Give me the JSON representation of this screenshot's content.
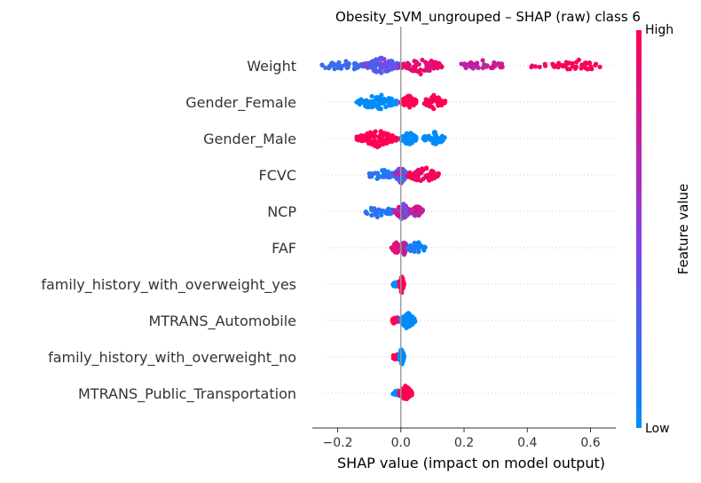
{
  "chart_data": {
    "type": "scatter",
    "subtype": "shap-beeswarm",
    "title": "Obesity_SVM_ungrouped – SHAP (raw) class 6",
    "xlabel": "SHAP value (impact on model output)",
    "ylabel": "",
    "xlim": [
      -0.28,
      0.68
    ],
    "xticks": [
      -0.2,
      0.0,
      0.2,
      0.4,
      0.6
    ],
    "xtick_labels": [
      "−0.2",
      "0.0",
      "0.2",
      "0.4",
      "0.6"
    ],
    "grid": false,
    "colorbar": {
      "label": "Feature value",
      "high_label": "High",
      "low_label": "Low",
      "low_color": "#008bfb",
      "high_color": "#ff0052"
    },
    "features": [
      {
        "name": "Weight",
        "clusters": [
          {
            "range": [
              -0.25,
              -0.12
            ],
            "n": 40,
            "value": 0.2,
            "spread": 0.05
          },
          {
            "range": [
              -0.12,
              0.0
            ],
            "n": 110,
            "value": 0.35,
            "spread": 0.15
          },
          {
            "range": [
              0.0,
              0.13
            ],
            "n": 60,
            "value": 0.88,
            "spread": 0.08
          },
          {
            "range": [
              0.19,
              0.33
            ],
            "n": 35,
            "value": 0.75,
            "spread": 0.1
          },
          {
            "range": [
              0.41,
              0.46
            ],
            "n": 6,
            "value": 0.96,
            "spread": 0.02
          },
          {
            "range": [
              0.48,
              0.64
            ],
            "n": 40,
            "value": 0.97,
            "spread": 0.02
          }
        ]
      },
      {
        "name": "Gender_Female",
        "clusters": [
          {
            "range": [
              -0.14,
              -0.01
            ],
            "n": 90,
            "value": 0.0,
            "spread": 0.0
          },
          {
            "range": [
              0.0,
              0.05
            ],
            "n": 45,
            "value": 1.0,
            "spread": 0.0
          },
          {
            "range": [
              0.07,
              0.14
            ],
            "n": 45,
            "value": 1.0,
            "spread": 0.0
          }
        ]
      },
      {
        "name": "Gender_Male",
        "clusters": [
          {
            "range": [
              -0.14,
              -0.01
            ],
            "n": 90,
            "value": 1.0,
            "spread": 0.0
          },
          {
            "range": [
              0.0,
              0.05
            ],
            "n": 45,
            "value": 0.0,
            "spread": 0.0
          },
          {
            "range": [
              0.07,
              0.14
            ],
            "n": 45,
            "value": 0.0,
            "spread": 0.0
          }
        ]
      },
      {
        "name": "FCVC",
        "clusters": [
          {
            "range": [
              -0.1,
              -0.02
            ],
            "n": 35,
            "value": 0.15,
            "spread": 0.1
          },
          {
            "range": [
              -0.02,
              0.02
            ],
            "n": 70,
            "value": 0.5,
            "spread": 0.4
          },
          {
            "range": [
              0.02,
              0.12
            ],
            "n": 60,
            "value": 0.95,
            "spread": 0.05
          }
        ]
      },
      {
        "name": "NCP",
        "clusters": [
          {
            "range": [
              -0.12,
              -0.02
            ],
            "n": 40,
            "value": 0.15,
            "spread": 0.1
          },
          {
            "range": [
              -0.02,
              0.03
            ],
            "n": 70,
            "value": 0.6,
            "spread": 0.35
          },
          {
            "range": [
              0.03,
              0.07
            ],
            "n": 35,
            "value": 0.75,
            "spread": 0.15
          }
        ]
      },
      {
        "name": "FAF",
        "clusters": [
          {
            "range": [
              -0.03,
              0.0
            ],
            "n": 35,
            "value": 0.9,
            "spread": 0.1
          },
          {
            "range": [
              0.0,
              0.02
            ],
            "n": 50,
            "value": 0.6,
            "spread": 0.3
          },
          {
            "range": [
              0.02,
              0.08
            ],
            "n": 40,
            "value": 0.08,
            "spread": 0.05
          }
        ]
      },
      {
        "name": "family_history_with_overweight_yes",
        "clusters": [
          {
            "range": [
              -0.025,
              -0.002
            ],
            "n": 18,
            "value": 0.0,
            "spread": 0.0
          },
          {
            "range": [
              -0.005,
              0.01
            ],
            "n": 60,
            "value": 1.0,
            "spread": 0.0
          }
        ]
      },
      {
        "name": "MTRANS_Automobile",
        "clusters": [
          {
            "range": [
              -0.028,
              -0.003
            ],
            "n": 22,
            "value": 1.0,
            "spread": 0.0
          },
          {
            "range": [
              -0.003,
              0.045
            ],
            "n": 60,
            "value": 0.0,
            "spread": 0.0
          }
        ]
      },
      {
        "name": "family_history_with_overweight_no",
        "clusters": [
          {
            "range": [
              -0.025,
              -0.002
            ],
            "n": 18,
            "value": 1.0,
            "spread": 0.0
          },
          {
            "range": [
              -0.005,
              0.01
            ],
            "n": 60,
            "value": 0.0,
            "spread": 0.0
          }
        ]
      },
      {
        "name": "MTRANS_Public_Transportation",
        "clusters": [
          {
            "range": [
              -0.025,
              -0.002
            ],
            "n": 18,
            "value": 0.0,
            "spread": 0.0
          },
          {
            "range": [
              -0.005,
              0.035
            ],
            "n": 60,
            "value": 1.0,
            "spread": 0.0
          }
        ]
      }
    ]
  }
}
